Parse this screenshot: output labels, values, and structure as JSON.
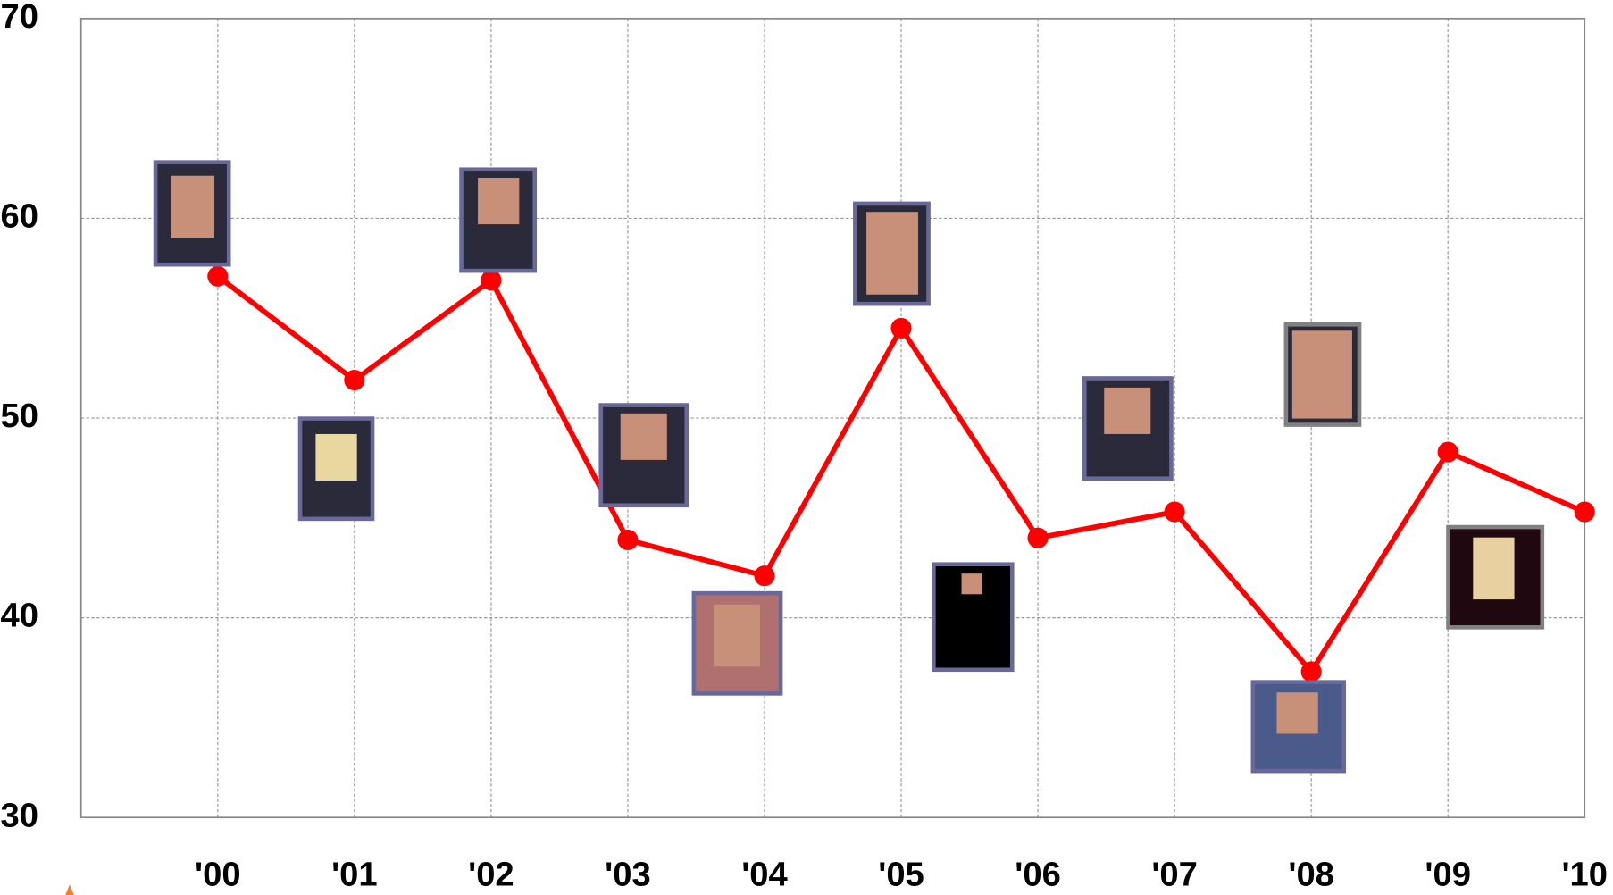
{
  "chart_data": {
    "type": "line",
    "categories": [
      "'00",
      "'01",
      "'02",
      "'03",
      "'04",
      "'05",
      "'06",
      "'07",
      "'08",
      "'09",
      "'10"
    ],
    "values": [
      57.1,
      51.9,
      56.9,
      43.9,
      42.1,
      54.5,
      44.0,
      45.3,
      37.3,
      48.3,
      45.3
    ],
    "color": "#ff0000",
    "ylim": [
      30,
      70
    ],
    "yticks": [
      30,
      40,
      50,
      60,
      70
    ],
    "grid": true
  }
}
